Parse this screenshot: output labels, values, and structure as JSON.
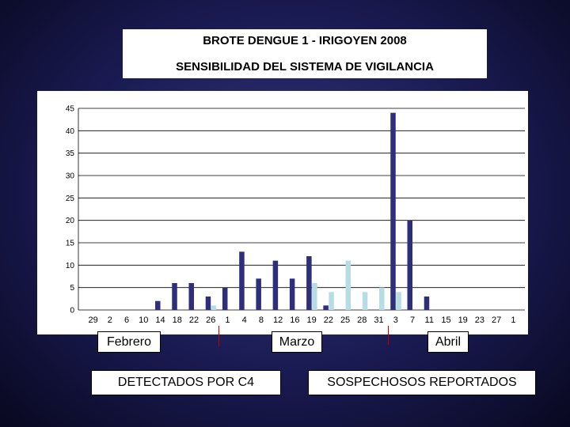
{
  "header": {
    "line1": "BROTE DENGUE 1 - IRIGOYEN 2008",
    "line2": "SENSIBILIDAD DEL SISTEMA DE VIGILANCIA"
  },
  "months": {
    "feb": "Febrero",
    "mar": "Marzo",
    "abr": "Abril"
  },
  "legend": {
    "detected": "DETECTADOS POR C4",
    "suspected": "SOSPECHOSOS REPORTADOS"
  },
  "colors": {
    "detected": "#2e2e7a",
    "suspected": "#b7dde4"
  },
  "chart_data": {
    "type": "bar",
    "categories": [
      "29",
      "2",
      "6",
      "10",
      "14",
      "18",
      "22",
      "26",
      "1",
      "4",
      "8",
      "12",
      "16",
      "19",
      "22",
      "25",
      "28",
      "31",
      "3",
      "7",
      "11",
      "15",
      "19",
      "23",
      "27",
      "1"
    ],
    "series": [
      {
        "name": "DETECTADOS POR C4",
        "values": [
          0,
          0,
          0,
          0,
          2,
          6,
          6,
          3,
          5,
          13,
          7,
          11,
          7,
          12,
          1,
          0,
          0,
          0,
          44,
          20,
          3,
          0,
          0,
          0,
          0,
          0
        ]
      },
      {
        "name": "SOSPECHOSOS REPORTADOS",
        "values": [
          0,
          0,
          0,
          0,
          0,
          0,
          0,
          1,
          0,
          0,
          0,
          0,
          0,
          6,
          4,
          11,
          4,
          5,
          4,
          0,
          0,
          0,
          0,
          0,
          0,
          0
        ]
      }
    ],
    "ylim": [
      0,
      45
    ],
    "yticks": [
      0,
      5,
      10,
      15,
      20,
      25,
      30,
      35,
      40,
      45
    ],
    "grid": true
  }
}
